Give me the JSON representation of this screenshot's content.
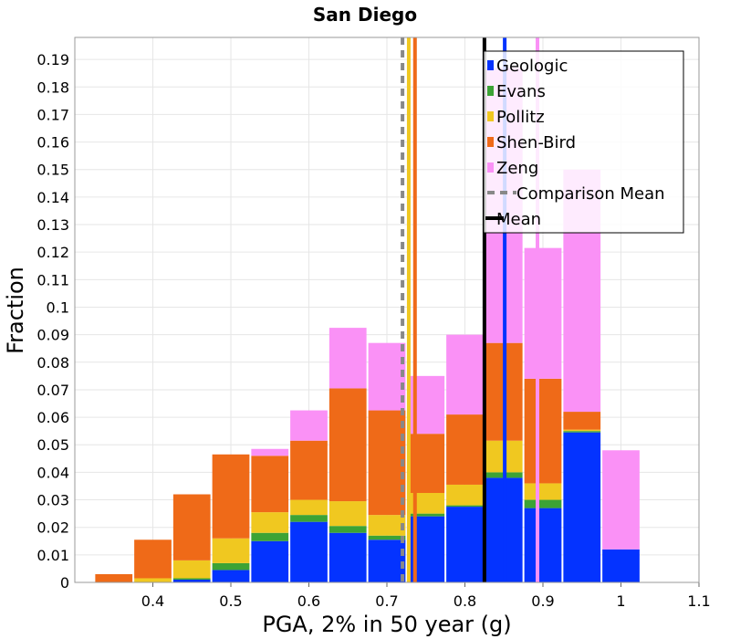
{
  "chart_data": {
    "type": "bar",
    "stacked": true,
    "title": "San Diego",
    "xlabel": "PGA, 2% in 50 year (g)",
    "ylabel": "Fraction",
    "xlim": [
      0.3,
      1.1
    ],
    "ylim": [
      0,
      0.198
    ],
    "x_ticks": [
      "0.4",
      "0.5",
      "0.6",
      "0.7",
      "0.8",
      "0.9",
      "1",
      "1.1"
    ],
    "y_ticks": [
      "0",
      "0.01",
      "0.02",
      "0.03",
      "0.04",
      "0.05",
      "0.06",
      "0.07",
      "0.08",
      "0.09",
      "0.1",
      "0.11",
      "0.12",
      "0.13",
      "0.14",
      "0.15",
      "0.16",
      "0.17",
      "0.18",
      "0.19"
    ],
    "bin_width": 0.05,
    "bins": [
      0.35,
      0.4,
      0.45,
      0.5,
      0.55,
      0.6,
      0.65,
      0.7,
      0.75,
      0.8,
      0.85,
      0.9,
      0.95,
      1.0
    ],
    "series": [
      {
        "name": "Geologic",
        "color": "#0433ff",
        "values": [
          0,
          0,
          0.001,
          0.0045,
          0.015,
          0.022,
          0.018,
          0.0155,
          0.024,
          0.0275,
          0.038,
          0.027,
          0.0545,
          0.012
        ]
      },
      {
        "name": "Evans",
        "color": "#3ca335",
        "values": [
          0,
          0,
          0.0005,
          0.0025,
          0.003,
          0.0025,
          0.0025,
          0.0015,
          0.001,
          0.0005,
          0.002,
          0.003,
          0.0005,
          0
        ]
      },
      {
        "name": "Pollitz",
        "color": "#f0c820",
        "values": [
          0,
          0.0015,
          0.0065,
          0.009,
          0.0075,
          0.0055,
          0.009,
          0.0075,
          0.0075,
          0.0075,
          0.0115,
          0.006,
          0.0005,
          0
        ]
      },
      {
        "name": "Shen-Bird",
        "color": "#ef6a18",
        "values": [
          0.003,
          0.014,
          0.024,
          0.0305,
          0.0205,
          0.0215,
          0.041,
          0.038,
          0.0215,
          0.0255,
          0.0355,
          0.038,
          0.0065,
          0
        ]
      },
      {
        "name": "Zeng",
        "color": "#fa91f6",
        "values": [
          0,
          0,
          0,
          0,
          0.0025,
          0.011,
          0.022,
          0.0245,
          0.021,
          0.029,
          0.1,
          0.0475,
          0.088,
          0.036
        ]
      }
    ],
    "vertical_lines": [
      {
        "name": "Zeng",
        "x": 0.893,
        "color": "#fa91f6",
        "style": "solid"
      },
      {
        "name": "Geologic",
        "x": 0.851,
        "color": "#0433ff",
        "style": "solid"
      },
      {
        "name": "Mean",
        "x": 0.825,
        "color": "#000000",
        "style": "solid"
      },
      {
        "name": "Shen-Bird",
        "x": 0.736,
        "color": "#ef6a18",
        "style": "solid"
      },
      {
        "name": "Pollitz",
        "x": 0.728,
        "color": "#f0c820",
        "style": "solid"
      },
      {
        "name": "Comparison Mean",
        "x": 0.72,
        "color": "#888888",
        "style": "dashed"
      }
    ],
    "legend": {
      "position": "top-right",
      "entries": [
        {
          "label": "Geologic",
          "color": "#0433ff",
          "kind": "box"
        },
        {
          "label": "Evans",
          "color": "#3ca335",
          "kind": "box"
        },
        {
          "label": "Pollitz",
          "color": "#f0c820",
          "kind": "box"
        },
        {
          "label": "Shen-Bird",
          "color": "#ef6a18",
          "kind": "box"
        },
        {
          "label": "Zeng",
          "color": "#fa91f6",
          "kind": "box"
        },
        {
          "label": "Comparison Mean",
          "color": "#888888",
          "kind": "dashed"
        },
        {
          "label": "Mean",
          "color": "#000000",
          "kind": "line"
        }
      ]
    },
    "grid": true
  }
}
